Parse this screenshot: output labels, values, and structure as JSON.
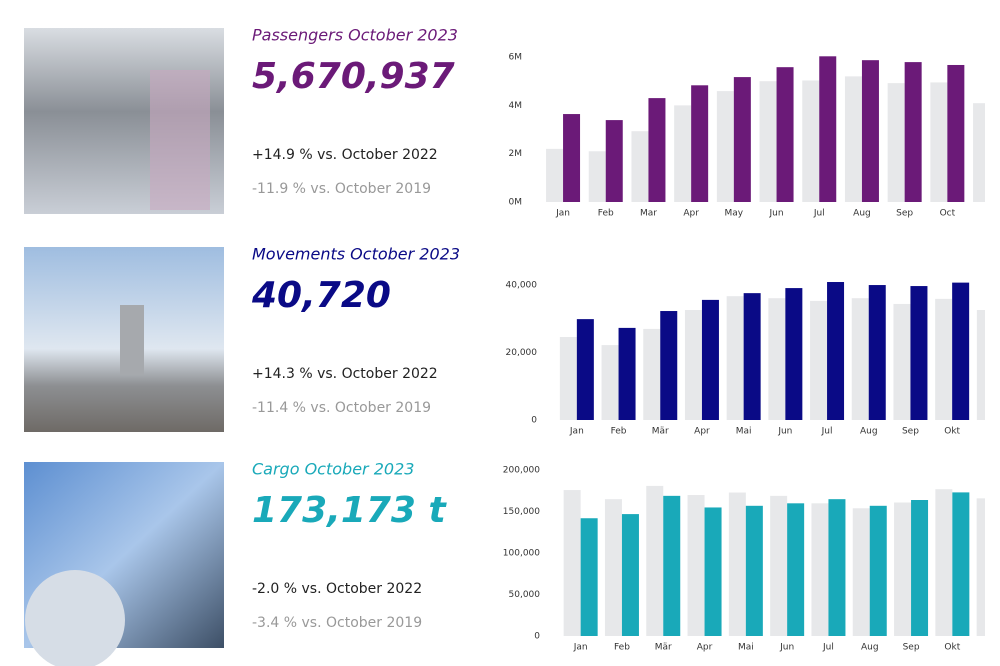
{
  "panels": [
    {
      "title": "Passengers October 2023",
      "value": "5,670,937",
      "comparisons": [
        "+14.9 % vs. October 2022",
        "-11.9 % vs. October 2019"
      ]
    },
    {
      "title": "Movements October 2023",
      "value": "40,720",
      "comparisons": [
        "+14.3 % vs. October 2022",
        "-11.4 % vs. October 2019"
      ]
    },
    {
      "title": "Cargo October 2023",
      "value": "173,173 t",
      "comparisons": [
        "-2.0 % vs. October 2022",
        "-3.4 % vs. October 2019"
      ]
    }
  ],
  "chart_data": [
    {
      "type": "bar",
      "categories": [
        "Jan",
        "Feb",
        "Mar",
        "Apr",
        "May",
        "Jun",
        "Jul",
        "Aug",
        "Sep",
        "Oct",
        null
      ],
      "series": [
        {
          "color": "#e7e8ea",
          "values": [
            2200000,
            2100000,
            2930000,
            4000000,
            4590000,
            5000000,
            5030000,
            5200000,
            4920000,
            4950000,
            4090000
          ]
        },
        {
          "color": "#6b1a78",
          "values": [
            3640000,
            3390000,
            4300000,
            4830000,
            5170000,
            5580000,
            6030000,
            5870000,
            5790000,
            5670937,
            null
          ]
        }
      ],
      "ylim": [
        0,
        6200000
      ],
      "yticks": [
        {
          "value": 0,
          "label": "0M"
        },
        {
          "value": 2000000,
          "label": "2M"
        },
        {
          "value": 4000000,
          "label": "4M"
        },
        {
          "value": 6000000,
          "label": "6M"
        }
      ]
    },
    {
      "type": "bar",
      "categories": [
        "Jan",
        "Feb",
        "Mär",
        "Apr",
        "Mai",
        "Jun",
        "Jul",
        "Aug",
        "Sep",
        "Okt",
        null
      ],
      "series": [
        {
          "color": "#e7e8ea",
          "values": [
            24600,
            22200,
            27000,
            32600,
            36700,
            36100,
            35300,
            36100,
            34400,
            35900,
            32600
          ]
        },
        {
          "color": "#0a0a86",
          "values": [
            29900,
            27300,
            32300,
            35600,
            37600,
            39100,
            40900,
            40000,
            39700,
            40720,
            null
          ]
        }
      ],
      "ylim": [
        0,
        42000
      ],
      "yticks": [
        0,
        {
          "value": 20000,
          "label": "20,000"
        },
        {
          "value": 40000,
          "label": "40,000"
        }
      ]
    },
    {
      "type": "bar",
      "categories": [
        "Jan",
        "Feb",
        "Mär",
        "Apr",
        "Mai",
        "Jun",
        "Jul",
        "Aug",
        "Sep",
        "Okt",
        null
      ],
      "series": [
        {
          "color": "#e7e8ea",
          "values": [
            176000,
            165000,
            181000,
            170000,
            173000,
            169000,
            160000,
            154000,
            161000,
            177000,
            166000
          ]
        },
        {
          "color": "#19a9b9",
          "values": [
            142000,
            147000,
            169000,
            155000,
            157000,
            160000,
            165000,
            157000,
            164000,
            173173,
            null
          ]
        }
      ],
      "ylim": [
        0,
        205000
      ],
      "yticks": [
        0,
        {
          "value": 50000,
          "label": "50,000"
        },
        {
          "value": 100000,
          "label": "100,000"
        },
        {
          "value": 150000,
          "label": "150,000"
        },
        {
          "value": 200000,
          "label": "200,000"
        }
      ]
    }
  ]
}
